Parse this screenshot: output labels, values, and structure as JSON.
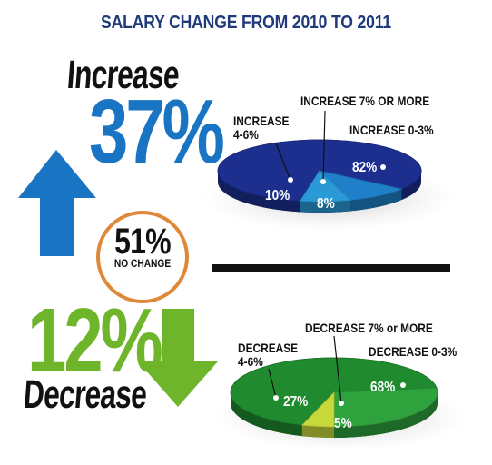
{
  "title": "SALARY CHANGE FROM 2010 TO 2011",
  "colors": {
    "title": "#1f3a7a",
    "increase_blue": "#1a74c4",
    "decrease_green": "#6fb52c",
    "pie_blue": "#1c2f8f",
    "pie_blue_light": "#1f7fc8",
    "pie_blue_mid": "#2a9ad6",
    "pie_green": "#1f8a2e",
    "pie_green_light": "#2ea23c",
    "pie_yellow": "#c7d83a",
    "circle_border": "#e0883a"
  },
  "increase": {
    "word": "Increase",
    "percent": "37%",
    "value": 37,
    "arrow_icon": "arrow-up-icon"
  },
  "decrease": {
    "word": "Decrease",
    "percent": "12%",
    "value": 12,
    "arrow_icon": "arrow-down-icon"
  },
  "no_change": {
    "value": "51%",
    "label": "NO CHANGE"
  },
  "chart_data": [
    {
      "type": "pie",
      "title": "",
      "slices": [
        {
          "label": "INCREASE 0-3%",
          "value": 82,
          "display": "82%"
        },
        {
          "label": "INCREASE 4-6%",
          "value": 10,
          "display": "10%"
        },
        {
          "label": "INCREASE 7% OR MORE",
          "value": 8,
          "display": "8%"
        }
      ]
    },
    {
      "type": "pie",
      "title": "",
      "slices": [
        {
          "label": "DECREASE 0-3%",
          "value": 68,
          "display": "68%"
        },
        {
          "label": "DECREASE 4-6%",
          "value": 27,
          "display": "27%"
        },
        {
          "label": "DECREASE 7% or MORE",
          "value": 5,
          "display": "5%"
        }
      ]
    }
  ]
}
